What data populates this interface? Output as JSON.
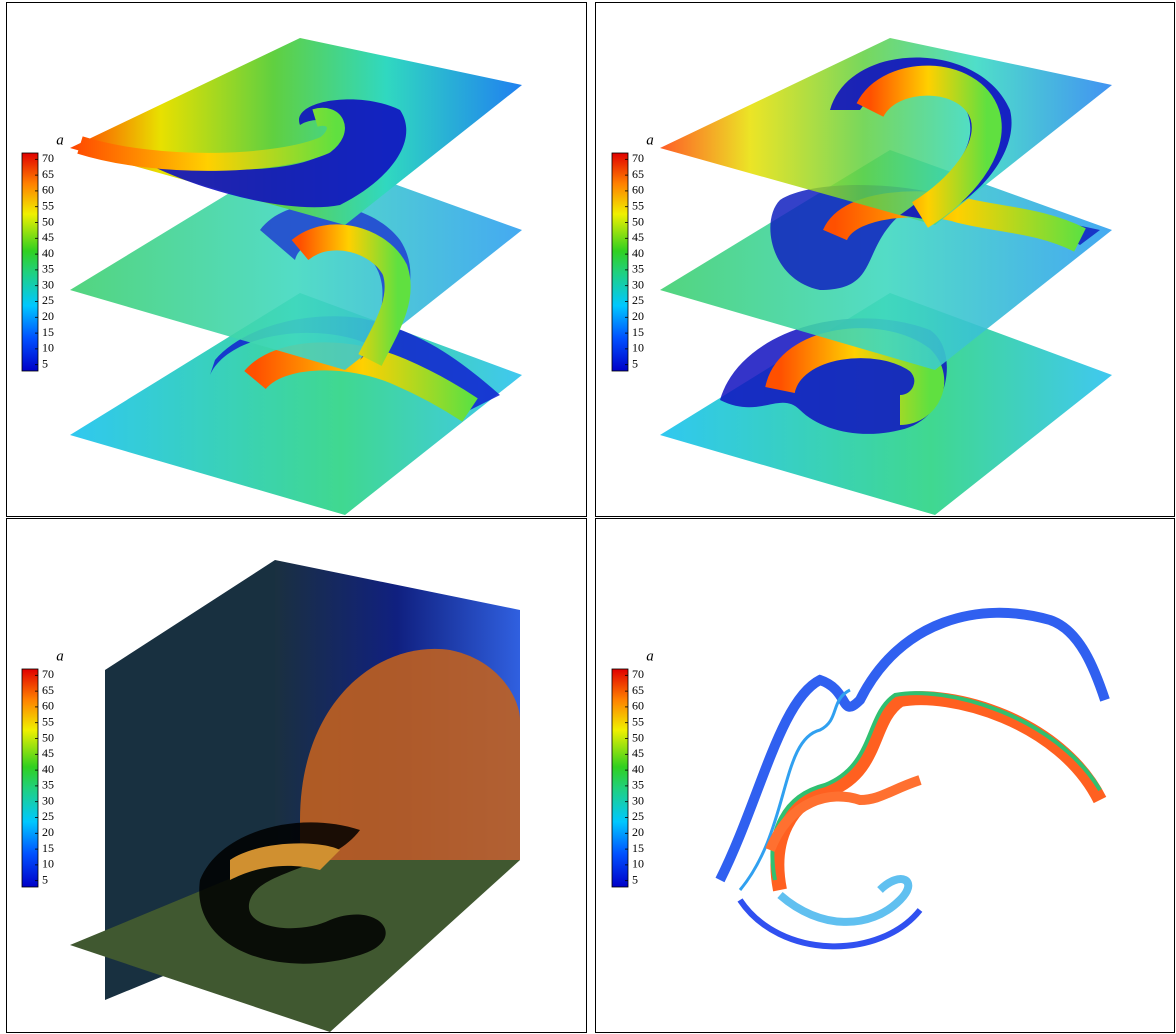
{
  "chart_data": [
    {
      "type": "slices",
      "colorbar_label": "a",
      "clim": [
        3,
        72
      ],
      "colorbar_ticks": [
        5,
        10,
        15,
        20,
        25,
        30,
        35,
        40,
        45,
        50,
        55,
        60,
        65,
        70
      ]
    },
    {
      "type": "slices",
      "colorbar_label": "a",
      "clim": [
        3,
        72
      ],
      "colorbar_ticks": [
        5,
        10,
        15,
        20,
        25,
        30,
        35,
        40,
        45,
        50,
        55,
        60,
        65,
        70
      ]
    },
    {
      "type": "cube",
      "colorbar_label": "a",
      "clim": [
        3,
        72
      ],
      "colorbar_ticks": [
        5,
        10,
        15,
        20,
        25,
        30,
        35,
        40,
        45,
        50,
        55,
        60,
        65,
        70
      ]
    },
    {
      "type": "isosurface",
      "colorbar_label": "a",
      "clim": [
        3,
        72
      ],
      "colorbar_ticks": [
        5,
        10,
        15,
        20,
        25,
        30,
        35,
        40,
        45,
        50,
        55,
        60,
        65,
        70
      ]
    }
  ]
}
